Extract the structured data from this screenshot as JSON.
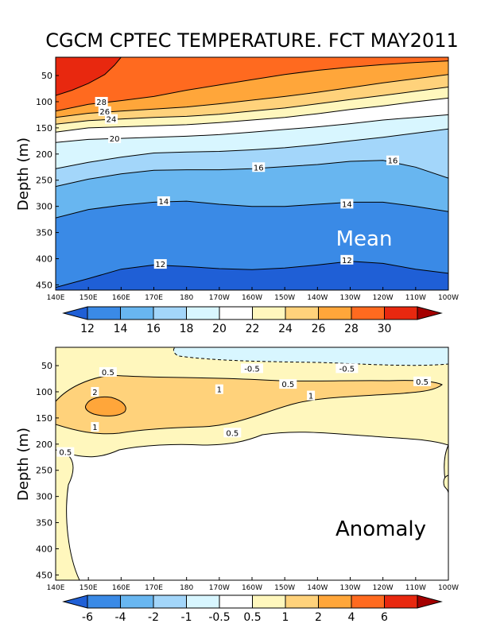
{
  "title": "CGCM CPTEC TEMPERATURE. FCT MAY2011",
  "colors": {
    "scale": [
      "#1f5fd6",
      "#3a8ae6",
      "#68b6f0",
      "#a3d6fa",
      "#d8f6ff",
      "#ffffff",
      "#fff7bd",
      "#ffd27b",
      "#ffa63a",
      "#ff6a1f",
      "#e8280f",
      "#a50000"
    ],
    "line": "#000000"
  },
  "chart_data": [
    {
      "type": "contour",
      "panel": "Mean",
      "label": "Mean",
      "ylabel": "Depth (m)",
      "x_ticks": [
        "140E",
        "150E",
        "160E",
        "170E",
        "180",
        "170W",
        "160W",
        "150W",
        "140W",
        "130W",
        "120W",
        "110W",
        "100W"
      ],
      "y_ticks": [
        50,
        100,
        150,
        200,
        250,
        300,
        350,
        400,
        450
      ],
      "ylim": [
        15,
        460
      ],
      "levels": [
        12,
        14,
        16,
        18,
        20,
        22,
        24,
        26,
        28,
        30
      ],
      "colorbar_labels": [
        "12",
        "14",
        "16",
        "18",
        "20",
        "22",
        "24",
        "26",
        "28",
        "30"
      ],
      "contour_labels": [
        {
          "text": "28",
          "lon": 154,
          "depth": 100
        },
        {
          "text": "26",
          "lon": 155,
          "depth": 118
        },
        {
          "text": "24",
          "lon": 157,
          "depth": 133
        },
        {
          "text": "20",
          "lon": 158,
          "depth": 170
        },
        {
          "text": "16",
          "lon": 202,
          "depth": 225
        },
        {
          "text": "16",
          "lon": 243,
          "depth": 212
        },
        {
          "text": "14",
          "lon": 173,
          "depth": 290
        },
        {
          "text": "14",
          "lon": 229,
          "depth": 295
        },
        {
          "text": "12",
          "lon": 172,
          "depth": 410
        },
        {
          "text": "12",
          "lon": 229,
          "depth": 402
        }
      ],
      "isolines": [
        {
          "level": 12,
          "points": [
            [
              140,
              455
            ],
            [
              150,
              438
            ],
            [
              160,
              420
            ],
            [
              170,
              412
            ],
            [
              180,
              415
            ],
            [
              190,
              419
            ],
            [
              200,
              421
            ],
            [
              210,
              418
            ],
            [
              220,
              412
            ],
            [
              230,
              405
            ],
            [
              240,
              409
            ],
            [
              250,
              420
            ],
            [
              260,
              428
            ]
          ]
        },
        {
          "level": 14,
          "points": [
            [
              140,
              322
            ],
            [
              150,
              306
            ],
            [
              160,
              298
            ],
            [
              170,
              292
            ],
            [
              180,
              290
            ],
            [
              190,
              296
            ],
            [
              200,
              300
            ],
            [
              210,
              300
            ],
            [
              220,
              296
            ],
            [
              230,
              292
            ],
            [
              240,
              292
            ],
            [
              250,
              300
            ],
            [
              260,
              310
            ]
          ]
        },
        {
          "level": 16,
          "points": [
            [
              140,
              262
            ],
            [
              150,
              248
            ],
            [
              160,
              238
            ],
            [
              170,
              231
            ],
            [
              180,
              230
            ],
            [
              190,
              230
            ],
            [
              200,
              228
            ],
            [
              210,
              224
            ],
            [
              220,
              220
            ],
            [
              230,
              214
            ],
            [
              240,
              212
            ],
            [
              250,
              225
            ],
            [
              260,
              246
            ]
          ]
        },
        {
          "level": 18,
          "points": [
            [
              140,
              228
            ],
            [
              150,
              216
            ],
            [
              160,
              206
            ],
            [
              170,
              198
            ],
            [
              180,
              196
            ],
            [
              190,
              195
            ],
            [
              200,
              192
            ],
            [
              210,
              188
            ],
            [
              220,
              182
            ],
            [
              230,
              175
            ],
            [
              240,
              168
            ],
            [
              250,
              160
            ],
            [
              260,
              152
            ]
          ]
        },
        {
          "level": 20,
          "points": [
            [
              140,
              178
            ],
            [
              150,
              172
            ],
            [
              160,
              170
            ],
            [
              170,
              168
            ],
            [
              180,
              166
            ],
            [
              190,
              163
            ],
            [
              200,
              158
            ],
            [
              210,
              153
            ],
            [
              220,
              148
            ],
            [
              230,
              142
            ],
            [
              240,
              135
            ],
            [
              250,
              130
            ],
            [
              260,
              125
            ]
          ]
        },
        {
          "level": 22,
          "points": [
            [
              140,
              158
            ],
            [
              150,
              150
            ],
            [
              160,
              148
            ],
            [
              170,
              146
            ],
            [
              180,
              144
            ],
            [
              190,
              140
            ],
            [
              200,
              135
            ],
            [
              210,
              130
            ],
            [
              220,
              123
            ],
            [
              230,
              115
            ],
            [
              240,
              108
            ],
            [
              250,
              100
            ],
            [
              260,
              93
            ]
          ]
        },
        {
          "level": 24,
          "points": [
            [
              140,
              143
            ],
            [
              150,
              136
            ],
            [
              160,
              133
            ],
            [
              170,
              130
            ],
            [
              180,
              128
            ],
            [
              190,
              124
            ],
            [
              200,
              118
            ],
            [
              210,
              112
            ],
            [
              220,
              104
            ],
            [
              230,
              96
            ],
            [
              240,
              88
            ],
            [
              250,
              80
            ],
            [
              260,
              72
            ]
          ]
        },
        {
          "level": 26,
          "points": [
            [
              140,
              130
            ],
            [
              150,
              122
            ],
            [
              160,
              118
            ],
            [
              170,
              114
            ],
            [
              180,
              110
            ],
            [
              190,
              104
            ],
            [
              200,
              97
            ],
            [
              210,
              90
            ],
            [
              220,
              82
            ],
            [
              230,
              73
            ],
            [
              240,
              64
            ],
            [
              250,
              56
            ],
            [
              260,
              48
            ]
          ]
        },
        {
          "level": 28,
          "points": [
            [
              140,
              118
            ],
            [
              150,
              105
            ],
            [
              160,
              98
            ],
            [
              170,
              90
            ],
            [
              180,
              78
            ],
            [
              190,
              68
            ],
            [
              200,
              58
            ],
            [
              210,
              48
            ],
            [
              220,
              40
            ],
            [
              230,
              34
            ],
            [
              240,
              29
            ],
            [
              250,
              25
            ],
            [
              260,
              22
            ]
          ]
        },
        {
          "level": 30,
          "points": [
            [
              140,
              88
            ],
            [
              145,
              78
            ],
            [
              150,
              65
            ],
            [
              155,
              48
            ],
            [
              158,
              30
            ],
            [
              160,
              15
            ]
          ]
        }
      ]
    },
    {
      "type": "contour",
      "panel": "Anomaly",
      "label": "Anomaly",
      "ylabel": "Depth (m)",
      "x_ticks": [
        "140E",
        "150E",
        "160E",
        "170E",
        "180",
        "170W",
        "160W",
        "150W",
        "140W",
        "130W",
        "120W",
        "110W",
        "100W"
      ],
      "y_ticks": [
        50,
        100,
        150,
        200,
        250,
        300,
        350,
        400,
        450
      ],
      "ylim": [
        15,
        460
      ],
      "levels": [
        -6,
        -4,
        -2,
        -1,
        -0.5,
        0.5,
        1,
        2,
        4,
        6
      ],
      "colorbar_labels": [
        "-6",
        "-4",
        "-2",
        "-1",
        "-0.5",
        "0.5",
        "1",
        "2",
        "4",
        "6"
      ],
      "contour_labels": [
        {
          "text": "-0.5",
          "lon": 200,
          "depth": 55
        },
        {
          "text": "-0.5",
          "lon": 229,
          "depth": 55
        },
        {
          "text": "0.5",
          "lon": 156,
          "depth": 62
        },
        {
          "text": "0.5",
          "lon": 211,
          "depth": 85
        },
        {
          "text": "0.5",
          "lon": 252,
          "depth": 80
        },
        {
          "text": "0.5",
          "lon": 194,
          "depth": 178
        },
        {
          "text": "0.5",
          "lon": 143,
          "depth": 215
        },
        {
          "text": "1",
          "lon": 190,
          "depth": 95
        },
        {
          "text": "1",
          "lon": 218,
          "depth": 107
        },
        {
          "text": "1",
          "lon": 152,
          "depth": 167
        },
        {
          "text": "2",
          "lon": 152,
          "depth": 100
        }
      ]
    }
  ]
}
